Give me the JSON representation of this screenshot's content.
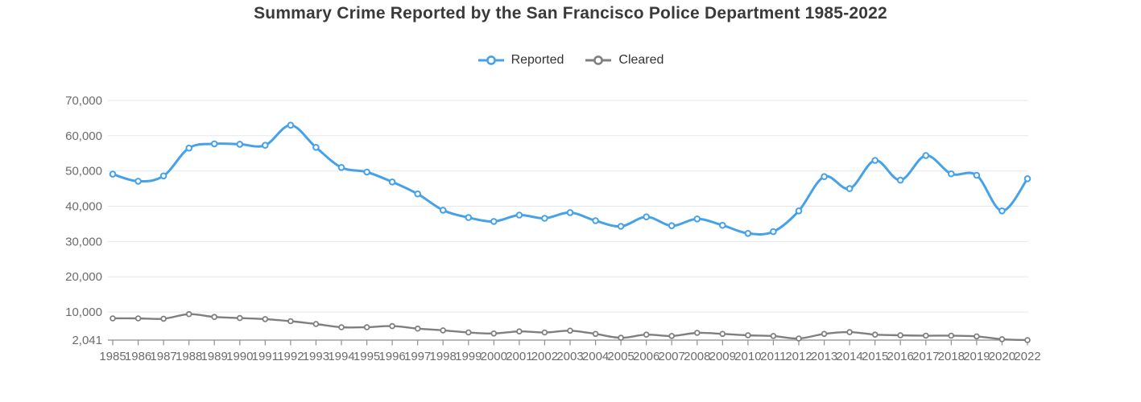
{
  "page": {
    "title": "Summary Crime Reported by the San Francisco Police Department 1985-2022"
  },
  "legend": {
    "items": [
      {
        "label": "Reported",
        "color": "#46a2e8"
      },
      {
        "label": "Cleared",
        "color": "#7f7f7f"
      }
    ]
  },
  "chart_data": {
    "type": "line",
    "title": "Summary Crime Reported by the San Francisco Police Department 1985-2022",
    "categories": [
      "1985",
      "1986",
      "1987",
      "1988",
      "1989",
      "1990",
      "1991",
      "1992",
      "1993",
      "1994",
      "1995",
      "1996",
      "1997",
      "1998",
      "1999",
      "2000",
      "2001",
      "2002",
      "2003",
      "2004",
      "2005",
      "2006",
      "2007",
      "2008",
      "2009",
      "2010",
      "2011",
      "2012",
      "2013",
      "2014",
      "2015",
      "2016",
      "2017",
      "2018",
      "2019",
      "2020",
      "2022"
    ],
    "series": [
      {
        "name": "Reported",
        "color": "#46a2e8",
        "values": [
          49100,
          47100,
          48600,
          56500,
          57700,
          57600,
          57300,
          63000,
          56700,
          51000,
          49700,
          46900,
          43500,
          38900,
          36800,
          35700,
          37500,
          36600,
          38200,
          35900,
          34300,
          37000,
          34500,
          36400,
          34600,
          32300,
          32800,
          38700,
          48400,
          45000,
          53000,
          47400,
          54400,
          49200,
          48800,
          38700,
          47800
        ]
      },
      {
        "name": "Cleared",
        "color": "#7f7f7f",
        "values": [
          8200,
          8200,
          8100,
          9400,
          8600,
          8300,
          8000,
          7400,
          6600,
          5700,
          5700,
          6000,
          5300,
          4800,
          4200,
          3900,
          4500,
          4200,
          4700,
          3800,
          2700,
          3600,
          3200,
          4100,
          3800,
          3400,
          3200,
          2500,
          3800,
          4300,
          3600,
          3400,
          3300,
          3300,
          3100,
          2300,
          2041
        ]
      }
    ],
    "xlabel": "",
    "ylabel": "",
    "ylim": [
      2041,
      70000
    ],
    "y_ticks": [
      {
        "value": 2041,
        "label": "2,041"
      },
      {
        "value": 10000,
        "label": "10,000"
      },
      {
        "value": 20000,
        "label": "20,000"
      },
      {
        "value": 30000,
        "label": "30,000"
      },
      {
        "value": 40000,
        "label": "40,000"
      },
      {
        "value": 50000,
        "label": "50,000"
      },
      {
        "value": 60000,
        "label": "60,000"
      },
      {
        "value": 70000,
        "label": "70,000"
      }
    ],
    "grid": true,
    "legend_position": "top",
    "smooth": true,
    "marker": "hollow-circle"
  },
  "colors": {
    "grid": "#e4e7ee",
    "axis": "#8f8f8f",
    "axis_label": "#6b6b6b",
    "title": "#3a3a3a",
    "legend_text": "#333333",
    "background": "#ffffff"
  }
}
